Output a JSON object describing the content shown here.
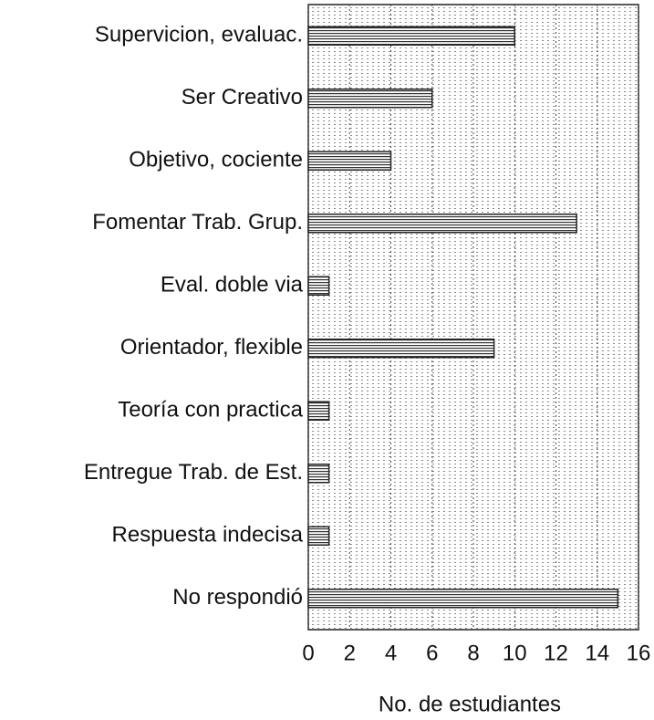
{
  "chart_data": {
    "type": "bar",
    "orientation": "horizontal",
    "x_label": "No. de estudiantes",
    "categories": [
      "Supervicion, evaluac.",
      "Ser Creativo",
      "Objetivo, cociente",
      "Fomentar Trab. Grup.",
      "Eval. doble via",
      "Orientador, flexible",
      "Teoría con practica",
      "Entregue Trab. de Est.",
      "Respuesta indecisa",
      "No respondió"
    ],
    "values": [
      10,
      6,
      4,
      13,
      1,
      9,
      1,
      1,
      1,
      15
    ],
    "xlim": [
      0,
      16
    ],
    "xticks": [
      0,
      2,
      4,
      6,
      8,
      10,
      12,
      14,
      16
    ],
    "grid": true,
    "color": "#222222"
  }
}
